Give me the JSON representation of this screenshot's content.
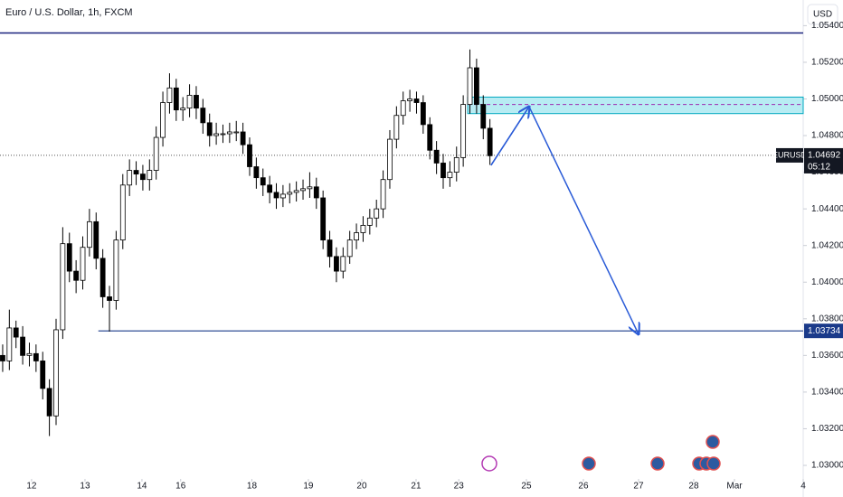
{
  "chart_data": {
    "type": "candlestick",
    "title": "Euro / U.S. Dollar, 1h, FXCM",
    "currency": "USD",
    "symbol": "EURUSD",
    "countdown": "05:12",
    "last_price": 1.04692,
    "last_price_label": "1.04692",
    "level": 1.03734,
    "level_label": "1.03734",
    "level_start": 43,
    "top_line": 1.0536,
    "zone": {
      "start": 209,
      "top": 1.0501,
      "bottom": 1.0492,
      "mid": 1.0497
    },
    "projection": {
      "x": [
        219.5,
        236.6,
        285.8
      ],
      "y": [
        1.04638,
        1.04958,
        1.03716
      ]
    },
    "up_color": "#ffffff",
    "down_color": "#000000",
    "xlim": [
      -1.2,
      359.8
    ],
    "xticks": [
      {
        "value": 13,
        "label": "12"
      },
      {
        "value": 37,
        "label": "13"
      },
      {
        "value": 62.6,
        "label": "14"
      },
      {
        "value": 80,
        "label": "16"
      },
      {
        "value": 112,
        "label": "18"
      },
      {
        "value": 137.4,
        "label": "19"
      },
      {
        "value": 161.4,
        "label": "20"
      },
      {
        "value": 185.8,
        "label": "21"
      },
      {
        "value": 205,
        "label": "23"
      },
      {
        "value": 235.4,
        "label": "25"
      },
      {
        "value": 261,
        "label": "26"
      },
      {
        "value": 285.8,
        "label": "27"
      },
      {
        "value": 310.6,
        "label": "28"
      },
      {
        "value": 328.9,
        "label": "Mar"
      },
      {
        "value": 359.8,
        "label": "4"
      }
    ],
    "ylim": [
      1.02926,
      1.0554
    ],
    "yticks": [
      {
        "value": 1.03,
        "label": "1.03000"
      },
      {
        "value": 1.032,
        "label": "1.03200"
      },
      {
        "value": 1.034,
        "label": "1.03400"
      },
      {
        "value": 1.036,
        "label": "1.03600"
      },
      {
        "value": 1.038,
        "label": "1.03800"
      },
      {
        "value": 1.04,
        "label": "1.04000"
      },
      {
        "value": 1.042,
        "label": "1.04200"
      },
      {
        "value": 1.044,
        "label": "1.04400"
      },
      {
        "value": 1.046,
        "label": "1.04600"
      },
      {
        "value": 1.048,
        "label": "1.04800"
      },
      {
        "value": 1.05,
        "label": "1.05000"
      },
      {
        "value": 1.052,
        "label": "1.05200"
      },
      {
        "value": 1.054,
        "label": "1.05400"
      }
    ],
    "x": [
      0,
      3,
      6,
      9,
      12,
      15,
      18,
      21,
      24,
      27,
      30,
      33,
      36,
      39,
      42,
      45,
      48,
      51,
      54,
      57,
      60,
      63,
      66,
      69,
      72,
      75,
      78,
      81,
      84,
      87,
      90,
      93,
      96,
      99,
      102,
      105,
      108,
      111,
      114,
      117,
      120,
      123,
      126,
      129,
      132,
      135,
      138,
      141,
      144,
      147,
      150,
      153,
      156,
      159,
      162,
      165,
      168,
      171,
      174,
      177,
      180,
      183,
      186,
      189,
      192,
      195,
      198,
      201,
      204,
      207,
      210,
      213,
      216,
      219
    ],
    "open": [
      1.036,
      1.0357,
      1.0375,
      1.037,
      1.036,
      1.0361,
      1.0357,
      1.0342,
      1.0327,
      1.0374,
      1.0421,
      1.0406,
      1.0401,
      1.0419,
      1.0433,
      1.0413,
      1.0392,
      1.039,
      1.0423,
      1.0453,
      1.0461,
      1.0459,
      1.0456,
      1.0461,
      1.0479,
      1.0498,
      1.0506,
      1.0494,
      1.0495,
      1.0502,
      1.0495,
      1.0487,
      1.048,
      1.0481,
      1.0481,
      1.0482,
      1.0482,
      1.0475,
      1.0463,
      1.0457,
      1.0453,
      1.0449,
      1.0446,
      1.0448,
      1.0449,
      1.045,
      1.0451,
      1.0452,
      1.0446,
      1.0423,
      1.0414,
      1.0406,
      1.0414,
      1.0423,
      1.0427,
      1.0431,
      1.0435,
      1.044,
      1.0456,
      1.0478,
      1.0491,
      1.0499,
      1.05,
      1.0498,
      1.0486,
      1.0472,
      1.0465,
      1.0457,
      1.046,
      1.0468,
      1.0497,
      1.0517,
      1.0497,
      1.0484
    ],
    "high": [
      1.0366,
      1.0385,
      1.0379,
      1.0376,
      1.0367,
      1.0366,
      1.0362,
      1.0347,
      1.038,
      1.043,
      1.0427,
      1.0412,
      1.0425,
      1.044,
      1.0438,
      1.0418,
      1.0398,
      1.0428,
      1.0459,
      1.0467,
      1.0466,
      1.0464,
      1.0467,
      1.0485,
      1.0504,
      1.0514,
      1.0511,
      1.0501,
      1.0508,
      1.0507,
      1.05,
      1.0492,
      1.0487,
      1.0486,
      1.0487,
      1.0488,
      1.0487,
      1.0479,
      1.0468,
      1.0462,
      1.0458,
      1.0454,
      1.0453,
      1.0454,
      1.0455,
      1.0456,
      1.046,
      1.0457,
      1.045,
      1.0428,
      1.0419,
      1.0419,
      1.0428,
      1.0432,
      1.0436,
      1.044,
      1.0445,
      1.0461,
      1.0483,
      1.0496,
      1.0504,
      1.0505,
      1.0504,
      1.0502,
      1.049,
      1.0477,
      1.047,
      1.0466,
      1.0474,
      1.0502,
      1.0527,
      1.0522,
      1.0502,
      1.0489
    ],
    "low": [
      1.0351,
      1.0352,
      1.0364,
      1.0355,
      1.0354,
      1.0351,
      1.0336,
      1.0316,
      1.0322,
      1.0369,
      1.04,
      1.0394,
      1.0396,
      1.0414,
      1.0407,
      1.0386,
      1.0373,
      1.0385,
      1.0418,
      1.0447,
      1.0453,
      1.045,
      1.045,
      1.0456,
      1.0474,
      1.0492,
      1.0488,
      1.0488,
      1.049,
      1.0489,
      1.0481,
      1.0474,
      1.0475,
      1.0476,
      1.0476,
      1.0477,
      1.047,
      1.0458,
      1.0451,
      1.0447,
      1.0443,
      1.044,
      1.0441,
      1.0443,
      1.0444,
      1.0445,
      1.0446,
      1.044,
      1.0418,
      1.0408,
      1.04,
      1.0402,
      1.041,
      1.0418,
      1.0422,
      1.0426,
      1.043,
      1.0435,
      1.0451,
      1.0473,
      1.0486,
      1.0493,
      1.0492,
      1.0481,
      1.0467,
      1.0459,
      1.0451,
      1.0452,
      1.0455,
      1.0463,
      1.0492,
      1.0492,
      1.0478,
      1.0464
    ],
    "close": [
      1.0357,
      1.0375,
      1.037,
      1.036,
      1.0361,
      1.0357,
      1.0342,
      1.0327,
      1.0374,
      1.0421,
      1.0406,
      1.0401,
      1.0419,
      1.0433,
      1.0413,
      1.0392,
      1.039,
      1.0423,
      1.0453,
      1.0461,
      1.0459,
      1.0456,
      1.0461,
      1.0479,
      1.0498,
      1.0506,
      1.0494,
      1.0495,
      1.0502,
      1.0495,
      1.0487,
      1.048,
      1.0481,
      1.0481,
      1.0482,
      1.0482,
      1.0475,
      1.0463,
      1.0457,
      1.0453,
      1.0449,
      1.0446,
      1.0448,
      1.0449,
      1.045,
      1.0451,
      1.0452,
      1.0446,
      1.0423,
      1.0414,
      1.0406,
      1.0414,
      1.0423,
      1.0427,
      1.0431,
      1.0435,
      1.044,
      1.0456,
      1.0478,
      1.0491,
      1.0499,
      1.05,
      1.0498,
      1.0486,
      1.0472,
      1.0465,
      1.0457,
      1.046,
      1.0468,
      1.0497,
      1.0517,
      1.0497,
      1.0484,
      1.0469
    ]
  }
}
